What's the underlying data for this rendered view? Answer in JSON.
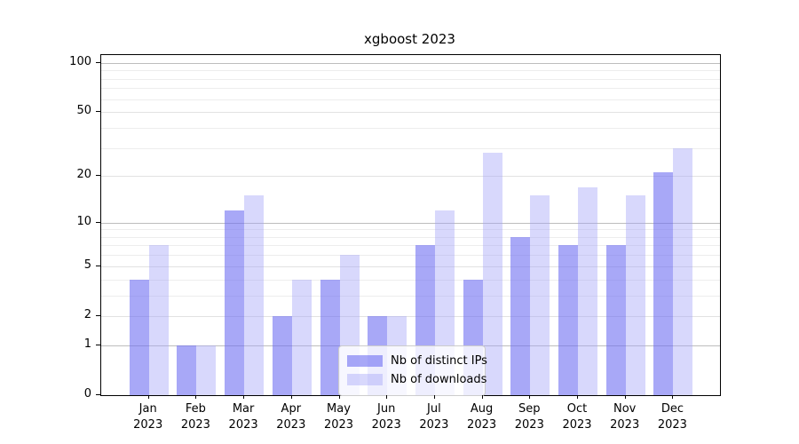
{
  "chart_data": {
    "type": "bar",
    "title": "xgboost 2023",
    "categories": [
      "Jan",
      "Feb",
      "Mar",
      "Apr",
      "May",
      "Jun",
      "Jul",
      "Aug",
      "Sep",
      "Oct",
      "Nov",
      "Dec"
    ],
    "year_label": "2023",
    "series": [
      {
        "name": "Nb of distinct IPs",
        "color_key": "distinct_ips",
        "values": [
          4,
          1,
          12,
          2,
          4,
          2,
          7,
          4,
          8,
          7,
          7,
          21
        ]
      },
      {
        "name": "Nb of downloads",
        "color_key": "downloads",
        "values": [
          7,
          1,
          15,
          4,
          6,
          2,
          12,
          28,
          15,
          17,
          15,
          30
        ]
      }
    ],
    "xlabel": "",
    "ylabel": "",
    "y_scale": "log1p",
    "ylim": [
      0,
      113
    ],
    "y_ticks": [
      0,
      1,
      2,
      5,
      10,
      20,
      50,
      100
    ],
    "y_major_gridlines": [
      1,
      10,
      100
    ],
    "y_mid_gridlines": [
      2,
      5,
      20,
      50
    ],
    "y_minor_gridlines": [
      3,
      4,
      6,
      7,
      8,
      9,
      30,
      40,
      60,
      70,
      80,
      90
    ],
    "grid": true,
    "legend_position": "lower center"
  },
  "colors": {
    "distinct_ips_bar": "#a9a9f6",
    "downloads_bar": "#dbdbfa",
    "gridline_major": "#bdbdbd",
    "gridline_minor": "#ededed",
    "axis": "#000000",
    "background": "#ffffff"
  }
}
